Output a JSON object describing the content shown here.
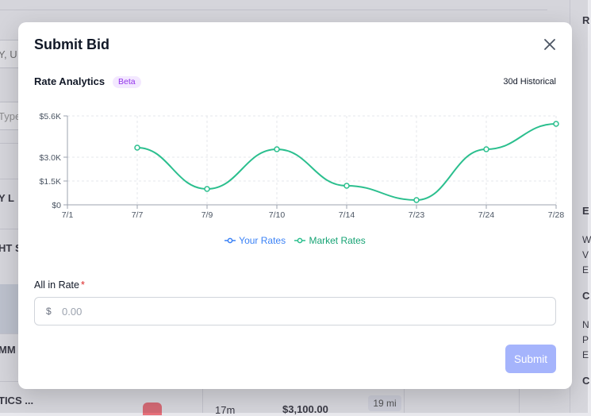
{
  "background": {
    "left_frags": [
      "Y, U",
      "Type",
      "Y L",
      "HT S",
      "MM",
      "TICS ..."
    ],
    "right_frags": [
      "R",
      "E",
      "W",
      "V",
      "E",
      "C",
      "N",
      "P",
      "E",
      "C"
    ],
    "row": {
      "duration": "17m",
      "price": "$3,100.00",
      "distance": "19 mi"
    }
  },
  "modal": {
    "title": "Submit Bid",
    "analytics": {
      "title": "Rate Analytics",
      "badge": "Beta",
      "range": "30d Historical"
    },
    "form": {
      "label": "All in Rate",
      "required_mark": "*",
      "currency": "$",
      "placeholder": "0.00",
      "submit": "Submit"
    }
  },
  "chart_data": {
    "type": "line",
    "categories": [
      "7/1",
      "7/7",
      "7/9",
      "7/10",
      "7/14",
      "7/23",
      "7/24",
      "7/28"
    ],
    "yticks": [
      "$0",
      "$1.5K",
      "$3.0K",
      "$5.6K"
    ],
    "ytick_values": [
      0,
      1500,
      3000,
      5600
    ],
    "ylim": [
      0,
      5600
    ],
    "grid": true,
    "legend_position": "bottom-center",
    "series": [
      {
        "name": "Your Rates",
        "color": "#3b82f6",
        "values": [
          null,
          null,
          null,
          null,
          null,
          null,
          null,
          null
        ]
      },
      {
        "name": "Market Rates",
        "color": "#2bbf8e",
        "values": [
          null,
          3600,
          1000,
          3500,
          1200,
          300,
          3500,
          5100
        ]
      }
    ]
  }
}
